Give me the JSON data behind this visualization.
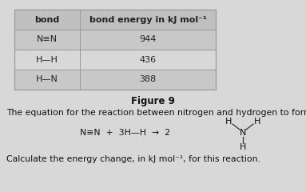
{
  "title": "Figure 9",
  "table_headers": [
    "bond",
    "bond energy in kJ mol⁻¹"
  ],
  "table_rows": [
    [
      "N≡N",
      "944"
    ],
    [
      "H—H",
      "436"
    ],
    [
      "H—N",
      "388"
    ]
  ],
  "text_line": "The equation for the reaction between nitrogen and hydrogen to form ammonia is",
  "footnote": "Calculate the energy change, in kJ mol⁻¹, for this reaction.",
  "bg_color": "#d8d8d8",
  "header_bg": "#c0c0c0",
  "row_bg_odd": "#d8d8d8",
  "row_bg_even": "#c8c8c8",
  "cell_border_color": "#999999",
  "font_size_table": 8.0,
  "font_size_body": 7.8,
  "font_size_title": 8.5
}
